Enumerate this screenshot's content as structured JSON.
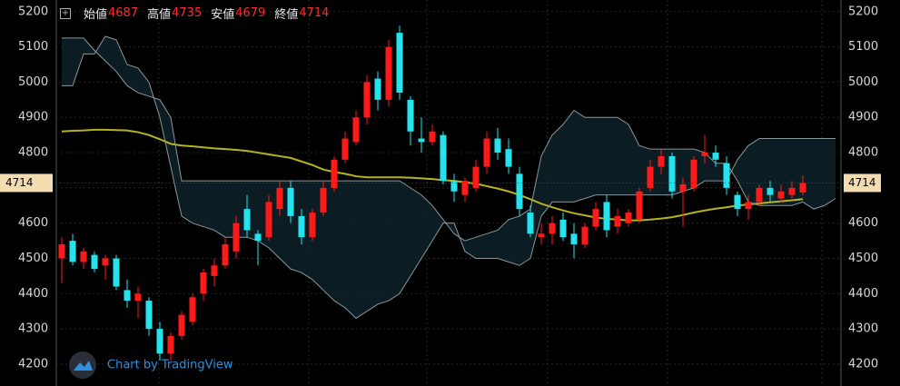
{
  "chart_data": {
    "type": "candlestick",
    "header_labels": [
      "始値",
      "高値",
      "安値",
      "終値"
    ],
    "watermark": "Chart by TradingView",
    "ylim": [
      4138,
      5233
    ],
    "yticks": [
      4200,
      4300,
      4400,
      4500,
      4600,
      4700,
      4800,
      4900,
      5000,
      5100,
      5200
    ],
    "grid": true,
    "up_color": "#ff1a1a",
    "down_color": "#22e3ee",
    "open": [
      4500,
      4550,
      4490,
      4510,
      4480,
      4500,
      4410,
      4380,
      4380,
      4300,
      4230,
      4280,
      4320,
      4400,
      4450,
      4480,
      4520,
      4640,
      4570,
      4560,
      4640,
      4700,
      4620,
      4560,
      4630,
      4700,
      4780,
      4830,
      4900,
      5010,
      4950,
      5140,
      4950,
      4840,
      4830,
      4850,
      4720,
      4680,
      4700,
      4760,
      4840,
      4810,
      4740,
      4630,
      4560,
      4570,
      4610,
      4570,
      4540,
      4590,
      4660,
      4590,
      4600,
      4610,
      4700,
      4760,
      4790,
      4690,
      4700,
      4790,
      4800,
      4770,
      4680,
      4640,
      4660,
      4700,
      4670,
      4680,
      4687
    ],
    "high": [
      4560,
      4570,
      4530,
      4520,
      4510,
      4510,
      4440,
      4420,
      4390,
      4320,
      4290,
      4350,
      4400,
      4470,
      4500,
      4560,
      4620,
      4680,
      4580,
      4680,
      4720,
      4720,
      4640,
      4640,
      4720,
      4790,
      4860,
      4920,
      5020,
      5030,
      5120,
      5160,
      4960,
      4900,
      4880,
      4860,
      4740,
      4730,
      4780,
      4860,
      4870,
      4840,
      4760,
      4650,
      4600,
      4620,
      4630,
      4600,
      4600,
      4660,
      4680,
      4640,
      4640,
      4700,
      4780,
      4810,
      4800,
      4730,
      4790,
      4850,
      4820,
      4790,
      4690,
      4680,
      4710,
      4720,
      4710,
      4720,
      4735
    ],
    "low": [
      4430,
      4480,
      4470,
      4460,
      4440,
      4410,
      4360,
      4330,
      4280,
      4210,
      4210,
      4270,
      4310,
      4380,
      4420,
      4470,
      4500,
      4560,
      4480,
      4550,
      4620,
      4600,
      4540,
      4550,
      4620,
      4690,
      4770,
      4820,
      4880,
      4920,
      4930,
      4950,
      4820,
      4800,
      4820,
      4710,
      4660,
      4660,
      4690,
      4740,
      4780,
      4740,
      4620,
      4560,
      4540,
      4540,
      4550,
      4500,
      4530,
      4580,
      4560,
      4570,
      4590,
      4600,
      4690,
      4740,
      4670,
      4590,
      4690,
      4770,
      4760,
      4680,
      4620,
      4610,
      4650,
      4660,
      4660,
      4670,
      4679
    ],
    "close": [
      4540,
      4490,
      4520,
      4470,
      4500,
      4420,
      4380,
      4400,
      4300,
      4230,
      4280,
      4340,
      4390,
      4460,
      4480,
      4540,
      4600,
      4580,
      4550,
      4660,
      4700,
      4620,
      4560,
      4630,
      4700,
      4780,
      4840,
      4900,
      5000,
      4950,
      5100,
      4970,
      4860,
      4830,
      4860,
      4720,
      4690,
      4720,
      4760,
      4840,
      4800,
      4760,
      4640,
      4570,
      4570,
      4600,
      4560,
      4540,
      4590,
      4640,
      4580,
      4620,
      4630,
      4690,
      4760,
      4790,
      4690,
      4710,
      4780,
      4800,
      4780,
      4700,
      4640,
      4660,
      4700,
      4680,
      4690,
      4700,
      4714
    ],
    "series": [
      {
        "color": "#b8b21e",
        "values": [
          4860,
          4862,
          4863,
          4865,
          4865,
          4864,
          4863,
          4858,
          4850,
          4838,
          4825,
          4820,
          4818,
          4815,
          4812,
          4810,
          4808,
          4805,
          4800,
          4795,
          4790,
          4785,
          4775,
          4765,
          4752,
          4745,
          4740,
          4733,
          4730,
          4730,
          4730,
          4730,
          4729,
          4727,
          4725,
          4722,
          4720,
          4716,
          4712,
          4705,
          4698,
          4690,
          4680,
          4668,
          4655,
          4645,
          4636,
          4628,
          4622,
          4616,
          4612,
          4610,
          4608,
          4608,
          4610,
          4613,
          4617,
          4623,
          4630,
          4636,
          4641,
          4645,
          4650,
          4653,
          4656,
          4659,
          4662,
          4665,
          4668
        ]
      },
      {
        "color": "#8b979b",
        "values": [
          5125,
          5125,
          5125,
          5090,
          5060,
          5030,
          4990,
          4970,
          4960,
          4950,
          4900,
          4720,
          4720,
          4720,
          4720,
          4720,
          4720,
          4720,
          4720,
          4720,
          4720,
          4720,
          4720,
          4720,
          4720,
          4720,
          4720,
          4720,
          4720,
          4720,
          4720,
          4720,
          4700,
          4680,
          4650,
          4610,
          4570,
          4550,
          4560,
          4570,
          4580,
          4610,
          4620,
          4640,
          4790,
          4850,
          4880,
          4920,
          4900,
          4900,
          4900,
          4900,
          4880,
          4820,
          4810,
          4810,
          4810,
          4810,
          4810,
          4800,
          4770,
          4770,
          4720,
          4660,
          4650,
          4650,
          4650,
          4650,
          4660,
          4640,
          4650,
          4670
        ]
      },
      {
        "color": "#8b979b",
        "values": [
          4990,
          4990,
          5080,
          5080,
          5130,
          5120,
          5050,
          5040,
          5000,
          4900,
          4760,
          4620,
          4600,
          4590,
          4580,
          4560,
          4560,
          4560,
          4550,
          4530,
          4500,
          4470,
          4460,
          4440,
          4410,
          4380,
          4360,
          4330,
          4350,
          4370,
          4380,
          4400,
          4450,
          4500,
          4550,
          4600,
          4600,
          4520,
          4500,
          4500,
          4500,
          4490,
          4480,
          4500,
          4620,
          4660,
          4660,
          4660,
          4670,
          4680,
          4680,
          4680,
          4680,
          4680,
          4680,
          4680,
          4680,
          4690,
          4700,
          4720,
          4720,
          4720,
          4780,
          4820,
          4840,
          4840,
          4840,
          4840,
          4840,
          4840,
          4840,
          4840
        ]
      }
    ]
  }
}
